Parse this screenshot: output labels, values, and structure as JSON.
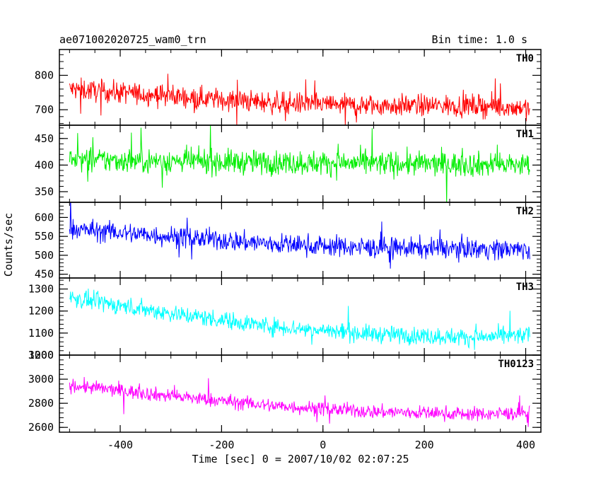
{
  "chart_data": {
    "type": "line",
    "title": "ae071002020725_wam0_trn",
    "bin_time": "Bin time: 1.0 s",
    "xlabel": "Time [sec] 0 = 2007/10/02 02:07:25",
    "ylabel": "Counts/sec",
    "xlim": [
      -520,
      430
    ],
    "x_ticks": [
      -400,
      -200,
      0,
      200,
      400
    ],
    "x_range": [
      -500,
      408
    ],
    "grid": false,
    "panels": [
      {
        "name": "TH0",
        "color": "#ff0000",
        "ylim": [
          655,
          875
        ],
        "y_ticks": [
          700,
          800
        ],
        "y_tick_labels": [
          "700",
          "800"
        ],
        "trend": [
          [
            -500,
            760
          ],
          [
            -300,
            740
          ],
          [
            -100,
            720
          ],
          [
            100,
            712
          ],
          [
            300,
            712
          ],
          [
            408,
            705
          ]
        ],
        "noise": 30
      },
      {
        "name": "TH1",
        "color": "#00ee00",
        "ylim": [
          330,
          475
        ],
        "y_ticks": [
          350,
          400,
          450
        ],
        "y_tick_labels": [
          "350",
          "400",
          "450"
        ],
        "trend": [
          [
            -500,
            410
          ],
          [
            -100,
            405
          ],
          [
            408,
            400
          ]
        ],
        "noise": 22
      },
      {
        "name": "TH2",
        "color": "#0000ff",
        "ylim": [
          440,
          640
        ],
        "y_ticks": [
          450,
          500,
          550,
          600
        ],
        "y_tick_labels": [
          "450",
          "500",
          "550",
          "600"
        ],
        "trend": [
          [
            -500,
            570
          ],
          [
            -300,
            550
          ],
          [
            -100,
            530
          ],
          [
            100,
            520
          ],
          [
            300,
            518
          ],
          [
            408,
            515
          ]
        ],
        "noise": 26
      },
      {
        "name": "TH3",
        "color": "#00ffff",
        "ylim": [
          1000,
          1350
        ],
        "y_ticks": [
          1000,
          1100,
          1200,
          1300
        ],
        "y_tick_labels": [
          "1000",
          "1100",
          "1200",
          "1300"
        ],
        "trend": [
          [
            -500,
            1260
          ],
          [
            -300,
            1190
          ],
          [
            -100,
            1130
          ],
          [
            100,
            1095
          ],
          [
            300,
            1080
          ],
          [
            408,
            1090
          ]
        ],
        "noise": 38
      },
      {
        "name": "TH0123",
        "color": "#ff00ff",
        "ylim": [
          2560,
          3200
        ],
        "y_ticks": [
          2600,
          2800,
          3000,
          3200
        ],
        "y_tick_labels": [
          "2600",
          "2800",
          "3000",
          "3200"
        ],
        "trend": [
          [
            -500,
            2950
          ],
          [
            -300,
            2860
          ],
          [
            -100,
            2780
          ],
          [
            100,
            2730
          ],
          [
            300,
            2710
          ],
          [
            408,
            2720
          ]
        ],
        "noise": 55
      }
    ]
  }
}
